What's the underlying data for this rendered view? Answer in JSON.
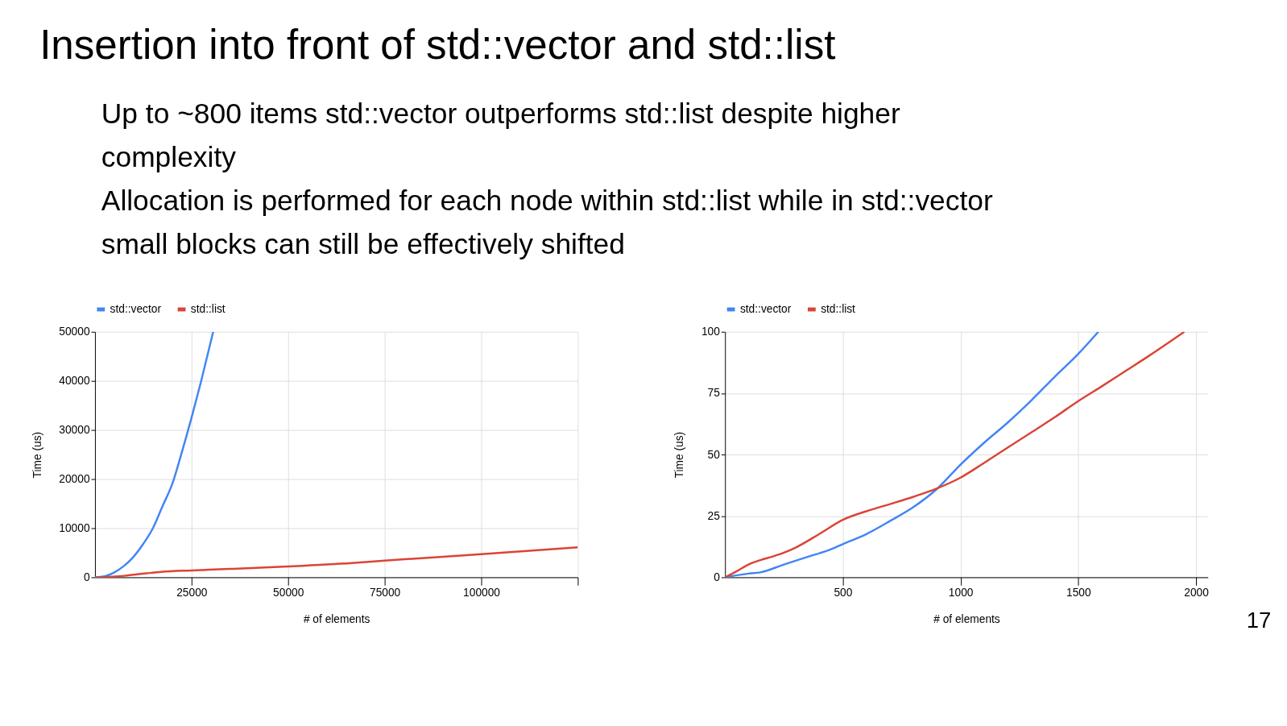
{
  "chart_data": [
    {
      "type": "other",
      "title": "Insertion into front of std::vector and std::list",
      "annotations": [
        "Up to ~800 items std::vector outperforms std::list  despite higher complexity",
        "Allocation is performed for each node within std::list while in std::vector small blocks can still be effectively shifted"
      ]
    },
    {
      "type": "line",
      "xlabel": "# of elements",
      "ylabel": "Time (us)",
      "xlim": [
        0,
        125000
      ],
      "ylim": [
        0,
        50000
      ],
      "xticks": [
        25000,
        50000,
        75000,
        100000,
        {
          "value": 125000,
          "label": null
        }
      ],
      "yticks": [
        0,
        10000,
        20000,
        30000,
        40000,
        50000
      ],
      "grid": true,
      "legend": "top",
      "series": [
        {
          "name": "std::vector",
          "color": "#4285f4",
          "x": [
            0,
            2500,
            5000,
            7500,
            10000,
            12500,
            15000,
            17500,
            20000,
            22500,
            25000,
            27500,
            30600
          ],
          "values": [
            0,
            200,
            1000,
            2300,
            4200,
            6800,
            10000,
            14500,
            19000,
            25500,
            32500,
            40000,
            50000
          ]
        },
        {
          "name": "std::list",
          "color": "#db4437",
          "x": [
            0,
            7600,
            13300,
            17100,
            25000,
            35000,
            50000,
            66500,
            75000,
            100000,
            125000
          ],
          "values": [
            0,
            300,
            800,
            1100,
            1400,
            1700,
            2200,
            2900,
            3400,
            4700,
            6100
          ]
        }
      ]
    },
    {
      "type": "line",
      "xlabel": "# of elements",
      "ylabel": "Time (us)",
      "xlim": [
        0,
        2050
      ],
      "ylim": [
        0,
        100
      ],
      "xticks": [
        500,
        1000,
        1500,
        2000
      ],
      "yticks": [
        0,
        25,
        50,
        75,
        100
      ],
      "grid": true,
      "legend": "top",
      "annotations": [
        "17"
      ],
      "series": [
        {
          "name": "std::vector",
          "color": "#4285f4",
          "x": [
            0,
            100,
            150,
            250,
            350,
            450,
            500,
            600,
            700,
            800,
            900,
            1000,
            1100,
            1200,
            1300,
            1400,
            1500,
            1585
          ],
          "values": [
            0,
            1.5,
            2,
            5.2,
            8.3,
            11.4,
            13.5,
            17.6,
            22.9,
            28.6,
            36,
            45.9,
            54.8,
            63,
            72,
            81.7,
            91,
            100
          ]
        },
        {
          "name": "std::list",
          "color": "#db4437",
          "x": [
            0,
            50,
            100,
            150,
            200,
            250,
            300,
            400,
            500,
            600,
            700,
            800,
            900,
            1000,
            1100,
            1200,
            1300,
            1400,
            1500,
            1600,
            1700,
            1800,
            1950
          ],
          "values": [
            0,
            2.5,
            5.2,
            7,
            8.4,
            10,
            12.1,
            17.6,
            23.4,
            26.9,
            29.8,
            32.8,
            36.2,
            40.6,
            46.6,
            52.8,
            59,
            65.2,
            71.8,
            77.8,
            84,
            90.2,
            100
          ]
        }
      ]
    }
  ]
}
